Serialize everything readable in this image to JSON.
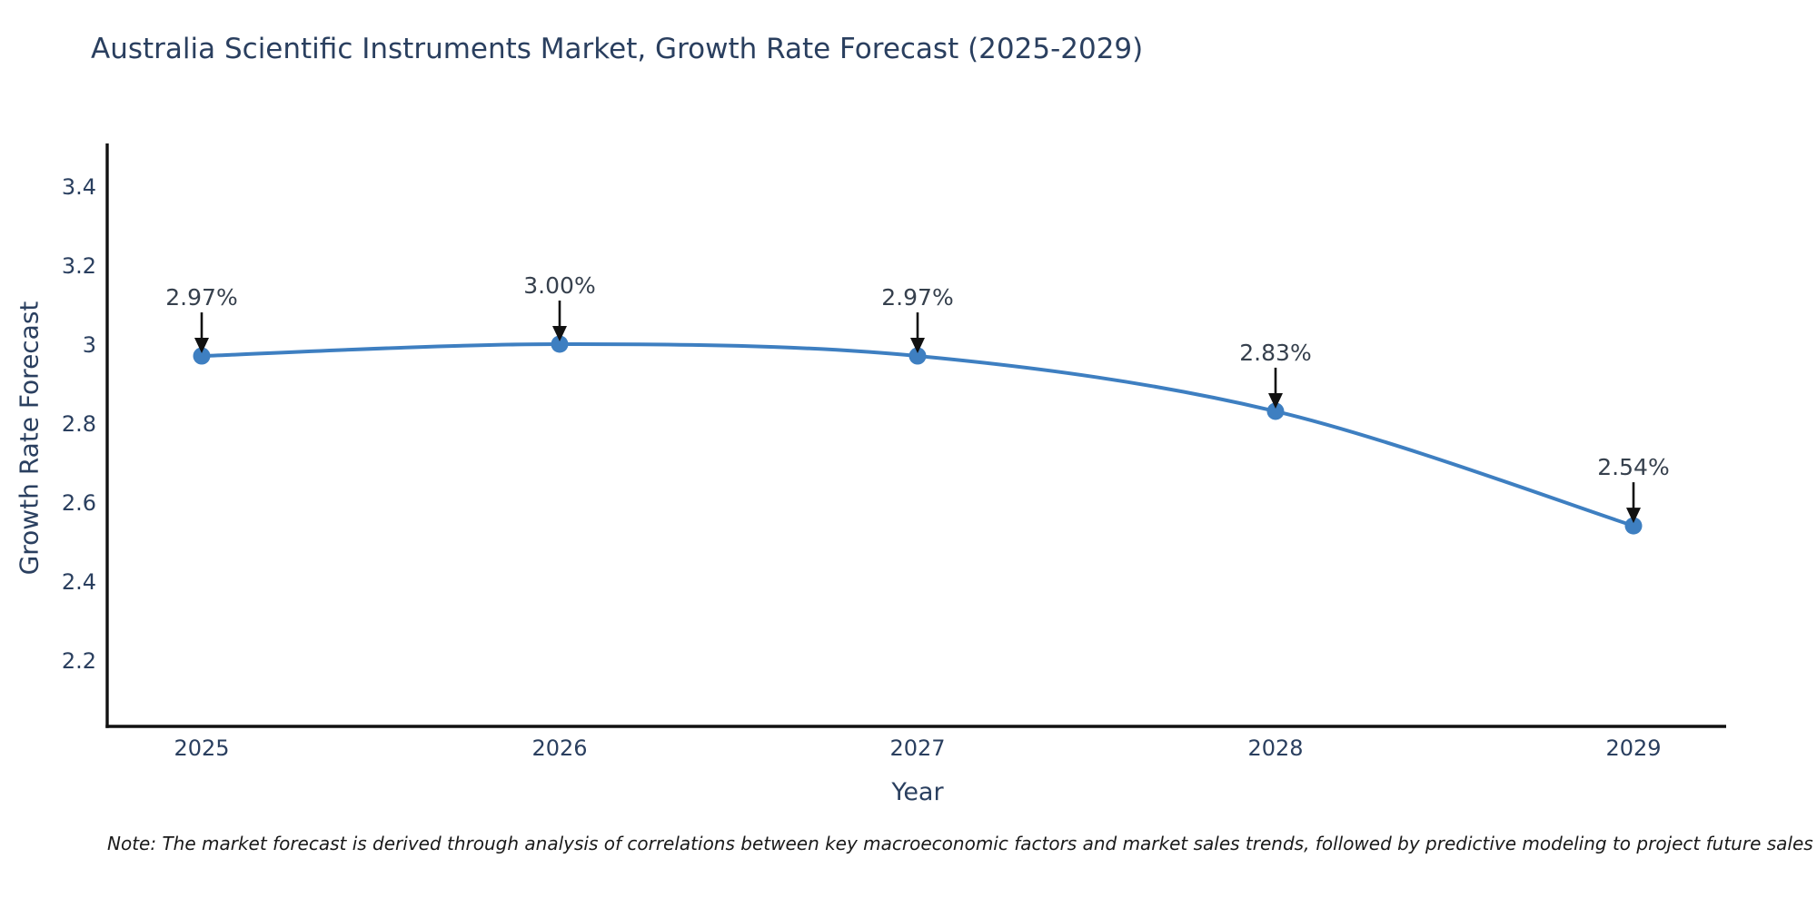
{
  "page": {
    "background_color": "#ffffff"
  },
  "chart_data": {
    "type": "line",
    "title": "Australia Scientific Instruments Market, Growth Rate Forecast (2025-2029)",
    "xlabel": "Year",
    "ylabel": "Growth Rate Forecast",
    "x": [
      2025,
      2026,
      2027,
      2028,
      2029
    ],
    "series": [
      {
        "name": "Growth Rate Forecast",
        "values": [
          2.97,
          3.0,
          2.97,
          2.83,
          2.54
        ],
        "point_labels": [
          "2.97%",
          "3.00%",
          "2.97%",
          "2.83%",
          "2.54%"
        ]
      }
    ],
    "x_tick_labels": [
      "2025",
      "2026",
      "2027",
      "2028",
      "2029"
    ],
    "y_ticks": [
      {
        "value": 2.2,
        "label": "2.2"
      },
      {
        "value": 2.4,
        "label": "2.4"
      },
      {
        "value": 2.6,
        "label": "2.6"
      },
      {
        "value": 2.8,
        "label": "2.8"
      },
      {
        "value": 3.0,
        "label": "3"
      },
      {
        "value": 3.2,
        "label": "3.2"
      },
      {
        "value": 3.4,
        "label": "3.4"
      }
    ],
    "ylim": [
      2.03,
      3.5
    ],
    "grid": false,
    "legend": "none",
    "curve": "spline",
    "annotations": "arrow-down-to-point",
    "colors": {
      "line": "#3e7fc1",
      "marker": "#3e7fc1",
      "axis": "#111111",
      "tick_text": "#2a3f5f",
      "annotation_text": "#36404d",
      "annotation_arrow": "#111111",
      "title_text": "#2a3f5f"
    },
    "note": "Note: The market forecast is derived through analysis of correlations between key macroeconomic factors and market sales trends, followed by predictive modeling to project future sales"
  }
}
